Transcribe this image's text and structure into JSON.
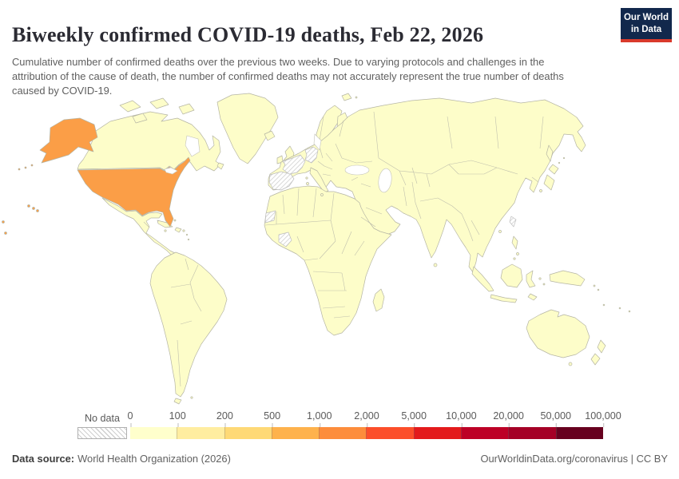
{
  "header": {
    "title": "Biweekly confirmed COVID-19 deaths, Feb 22, 2026",
    "subtitle": "Cumulative number of confirmed deaths over the previous two weeks. Due to varying protocols and challenges in the attribution of the cause of death, the number of confirmed deaths may not accurately represent the true number of deaths caused by COVID-19.",
    "logo": {
      "line1": "Our World",
      "line2": "in Data",
      "bg_color": "#12284C",
      "stripe_color": "#D93A2B"
    }
  },
  "chart_data": {
    "type": "choropleth_map",
    "title": "Biweekly confirmed COVID-19 deaths",
    "date": "Feb 22, 2026",
    "unit": "confirmed deaths over the previous two weeks",
    "legend": {
      "no_data_label": "No data",
      "tick_labels": [
        "0",
        "100",
        "200",
        "500",
        "1,000",
        "2,000",
        "5,000",
        "10,000",
        "20,000",
        "50,000",
        "100,000"
      ],
      "bins": [
        {
          "range": "0–100",
          "color": "#FFFFCC"
        },
        {
          "range": "100–200",
          "color": "#FFEDA0"
        },
        {
          "range": "200–500",
          "color": "#FED976"
        },
        {
          "range": "500–1,000",
          "color": "#FEB24C"
        },
        {
          "range": "1,000–2,000",
          "color": "#FD8D3C"
        },
        {
          "range": "2,000–5,000",
          "color": "#FC4E2A"
        },
        {
          "range": "5,000–10,000",
          "color": "#E31A1C"
        },
        {
          "range": "10,000–20,000",
          "color": "#BD0026"
        },
        {
          "range": "20,000–50,000",
          "color": "#A50026"
        },
        {
          "range": "50,000–100,000",
          "color": "#67001F"
        }
      ]
    },
    "map": {
      "default_color": "#FDFDC9",
      "default_bin": "0–100",
      "regions": {
        "united_states": {
          "label": "United States",
          "bin": "500–1,000",
          "color": "#FB9E47"
        }
      },
      "no_data_regions": [
        "Spain",
        "France",
        "Germany",
        "Western Sahara",
        "Côte d'Ivoire",
        "Taiwan"
      ]
    }
  },
  "footer": {
    "source_label": "Data source:",
    "source_value": "World Health Organization (2026)",
    "attribution": "OurWorldinData.org/coronavirus | CC BY"
  }
}
